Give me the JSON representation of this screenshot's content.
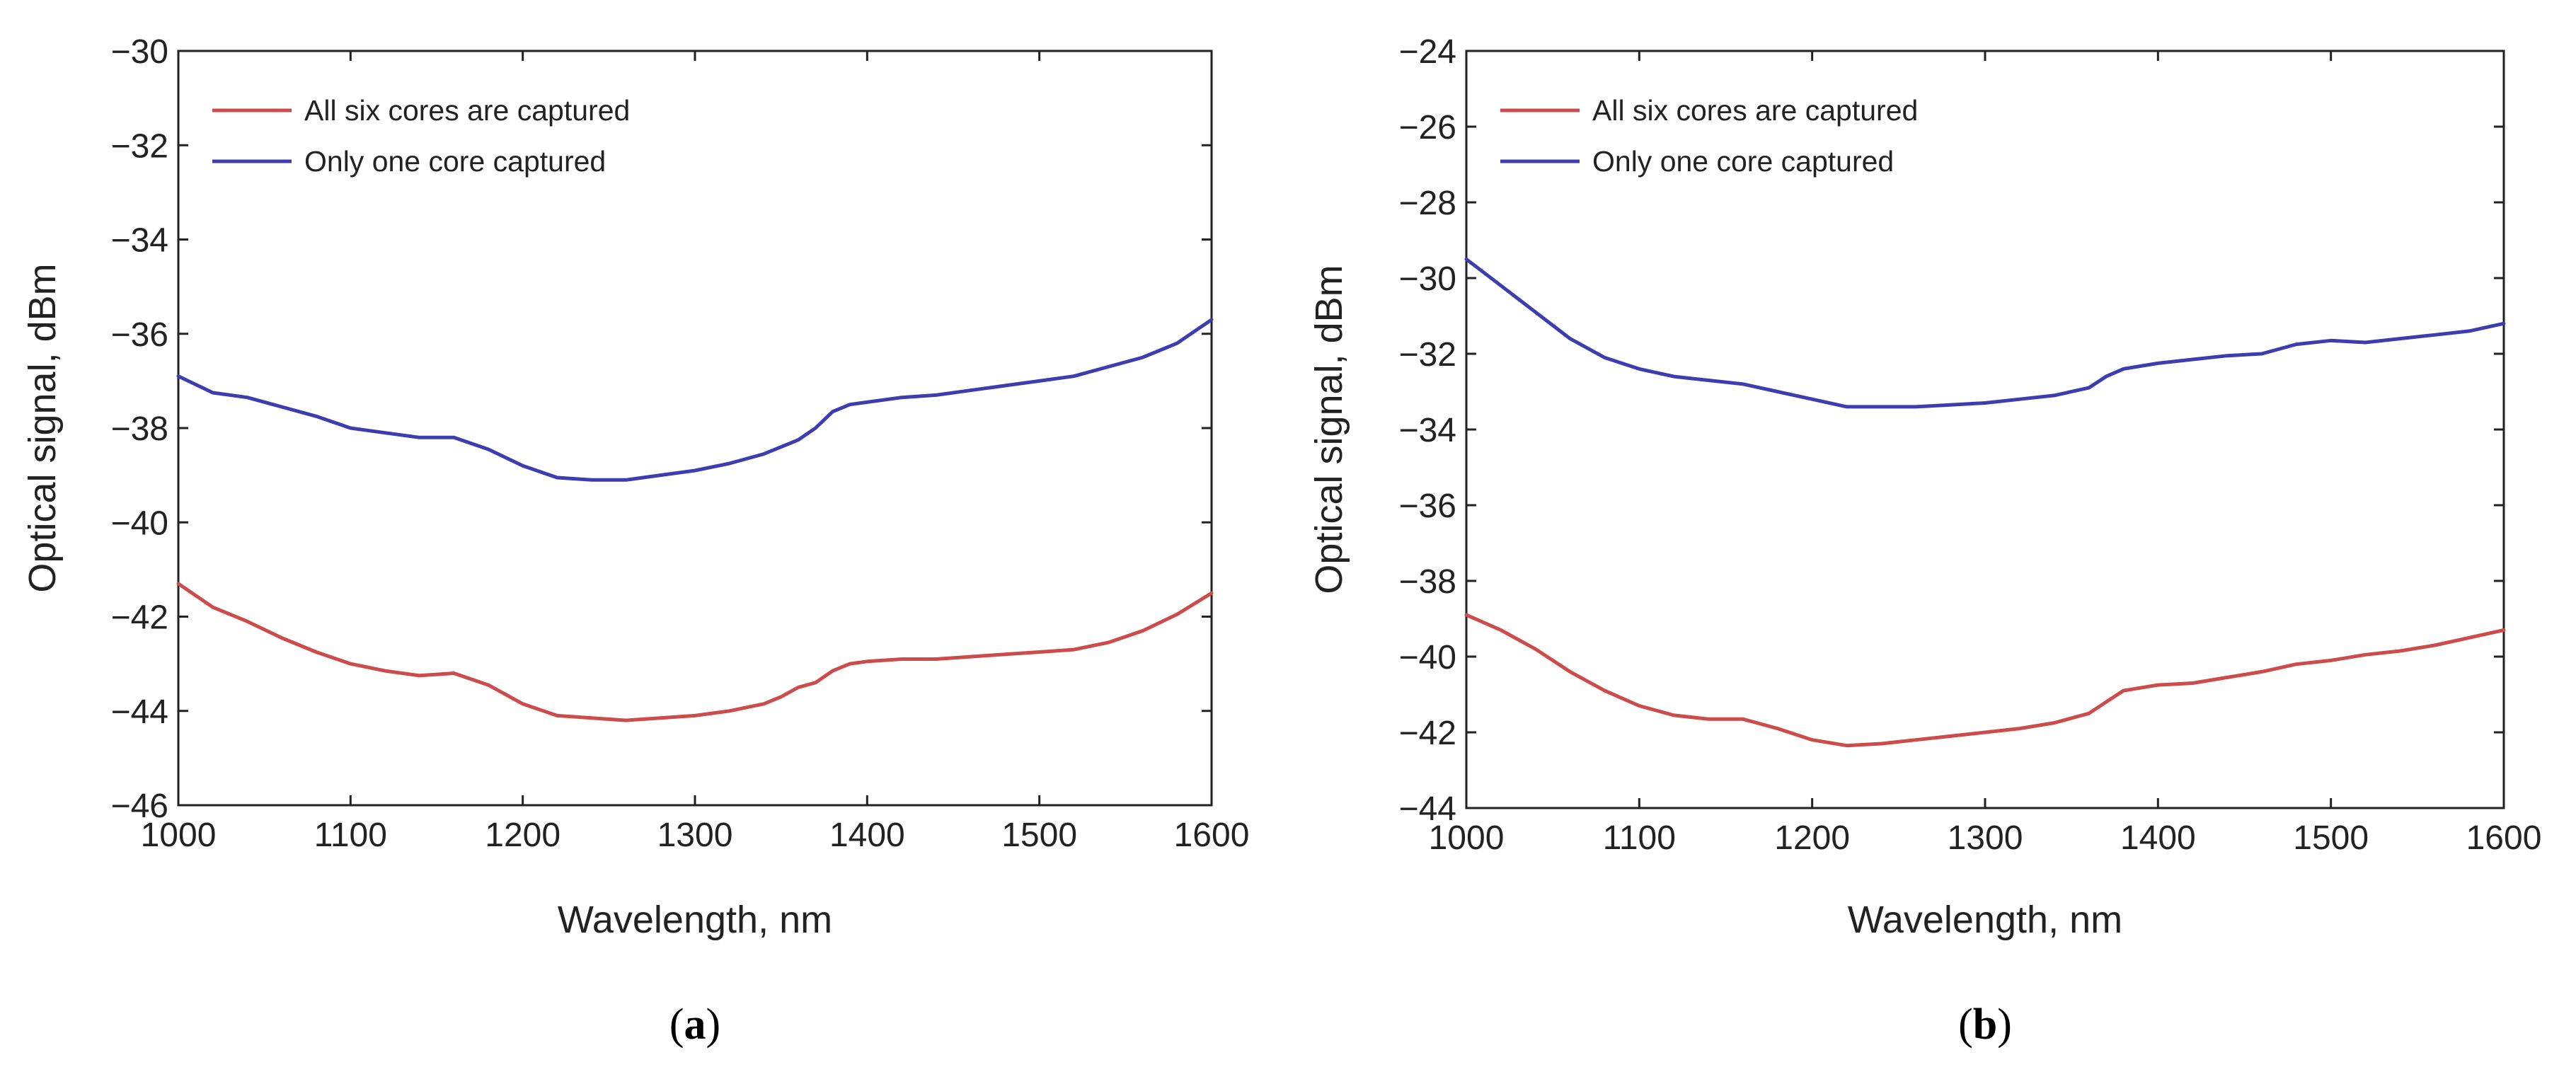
{
  "chart_data": [
    {
      "type": "line",
      "panel_label": "a",
      "xlabel": "Wavelength, nm",
      "ylabel": "Optical signal, dBm",
      "xlim": [
        1000,
        1600
      ],
      "ylim": [
        -46,
        -30
      ],
      "xticks": [
        1000,
        1100,
        1200,
        1300,
        1400,
        1500,
        1600
      ],
      "yticks": [
        -46,
        -44,
        -42,
        -40,
        -38,
        -36,
        -34,
        -32,
        -30
      ],
      "xtick_labels": [
        "1000",
        "1100",
        "1200",
        "1300",
        "1400",
        "1500",
        "1600"
      ],
      "ytick_labels": [
        "−46",
        "−44",
        "−42",
        "−40",
        "−38",
        "−36",
        "−34",
        "−32",
        "−30"
      ],
      "legend_position": "top-left",
      "series": [
        {
          "name": "All six cores are captured",
          "color": "#cc4b4b",
          "x": [
            1000,
            1020,
            1040,
            1060,
            1080,
            1100,
            1120,
            1140,
            1160,
            1180,
            1200,
            1220,
            1240,
            1260,
            1280,
            1300,
            1320,
            1340,
            1350,
            1360,
            1370,
            1380,
            1390,
            1400,
            1420,
            1440,
            1460,
            1480,
            1500,
            1520,
            1540,
            1560,
            1580,
            1600
          ],
          "y": [
            -41.3,
            -41.8,
            -42.1,
            -42.45,
            -42.75,
            -43.0,
            -43.15,
            -43.25,
            -43.2,
            -43.45,
            -43.85,
            -44.1,
            -44.15,
            -44.2,
            -44.15,
            -44.1,
            -44.0,
            -43.85,
            -43.7,
            -43.5,
            -43.4,
            -43.15,
            -43.0,
            -42.95,
            -42.9,
            -42.9,
            -42.85,
            -42.8,
            -42.75,
            -42.7,
            -42.55,
            -42.3,
            -41.95,
            -41.5
          ]
        },
        {
          "name": "Only one core captured",
          "color": "#3d3daf",
          "x": [
            1000,
            1020,
            1040,
            1060,
            1080,
            1100,
            1120,
            1140,
            1160,
            1180,
            1200,
            1220,
            1240,
            1260,
            1280,
            1300,
            1320,
            1340,
            1360,
            1370,
            1380,
            1390,
            1400,
            1420,
            1440,
            1460,
            1480,
            1500,
            1520,
            1540,
            1560,
            1580,
            1600
          ],
          "y": [
            -36.9,
            -37.25,
            -37.35,
            -37.55,
            -37.75,
            -38.0,
            -38.1,
            -38.2,
            -38.2,
            -38.45,
            -38.8,
            -39.05,
            -39.1,
            -39.1,
            -39.0,
            -38.9,
            -38.75,
            -38.55,
            -38.25,
            -38.0,
            -37.65,
            -37.5,
            -37.45,
            -37.35,
            -37.3,
            -37.2,
            -37.1,
            -37.0,
            -36.9,
            -36.7,
            -36.5,
            -36.2,
            -35.7
          ]
        }
      ]
    },
    {
      "type": "line",
      "panel_label": "b",
      "xlabel": "Wavelength, nm",
      "ylabel": "Optical signal, dBm",
      "xlim": [
        1000,
        1600
      ],
      "ylim": [
        -44,
        -24
      ],
      "xticks": [
        1000,
        1100,
        1200,
        1300,
        1400,
        1500,
        1600
      ],
      "yticks": [
        -44,
        -42,
        -40,
        -38,
        -36,
        -34,
        -32,
        -30,
        -28,
        -26,
        -24
      ],
      "xtick_labels": [
        "1000",
        "1100",
        "1200",
        "1300",
        "1400",
        "1500",
        "1600"
      ],
      "ytick_labels": [
        "−44",
        "−42",
        "−40",
        "−38",
        "−36",
        "−34",
        "−32",
        "−30",
        "−28",
        "−26",
        "−24"
      ],
      "legend_position": "top-left",
      "series": [
        {
          "name": "All six cores are captured",
          "color": "#cc4b4b",
          "x": [
            1000,
            1020,
            1040,
            1060,
            1080,
            1100,
            1120,
            1140,
            1160,
            1180,
            1200,
            1220,
            1240,
            1260,
            1280,
            1300,
            1320,
            1340,
            1360,
            1370,
            1380,
            1400,
            1420,
            1440,
            1460,
            1480,
            1500,
            1520,
            1540,
            1560,
            1580,
            1600
          ],
          "y": [
            -38.9,
            -39.3,
            -39.8,
            -40.4,
            -40.9,
            -41.3,
            -41.55,
            -41.65,
            -41.65,
            -41.9,
            -42.2,
            -42.35,
            -42.3,
            -42.2,
            -42.1,
            -42.0,
            -41.9,
            -41.75,
            -41.5,
            -41.2,
            -40.9,
            -40.75,
            -40.7,
            -40.55,
            -40.4,
            -40.2,
            -40.1,
            -39.95,
            -39.85,
            -39.7,
            -39.5,
            -39.3
          ]
        },
        {
          "name": "Only one core captured",
          "color": "#3d3daf",
          "x": [
            1000,
            1020,
            1040,
            1060,
            1080,
            1100,
            1120,
            1140,
            1160,
            1180,
            1200,
            1220,
            1240,
            1260,
            1280,
            1300,
            1320,
            1340,
            1360,
            1370,
            1380,
            1400,
            1420,
            1440,
            1460,
            1480,
            1500,
            1520,
            1540,
            1560,
            1580,
            1600
          ],
          "y": [
            -29.5,
            -30.2,
            -30.9,
            -31.6,
            -32.1,
            -32.4,
            -32.6,
            -32.7,
            -32.8,
            -33.0,
            -33.2,
            -33.4,
            -33.4,
            -33.4,
            -33.35,
            -33.3,
            -33.2,
            -33.1,
            -32.9,
            -32.6,
            -32.4,
            -32.25,
            -32.15,
            -32.05,
            -32.0,
            -31.75,
            -31.65,
            -31.7,
            -31.6,
            -31.5,
            -31.4,
            -31.2
          ]
        }
      ]
    }
  ]
}
